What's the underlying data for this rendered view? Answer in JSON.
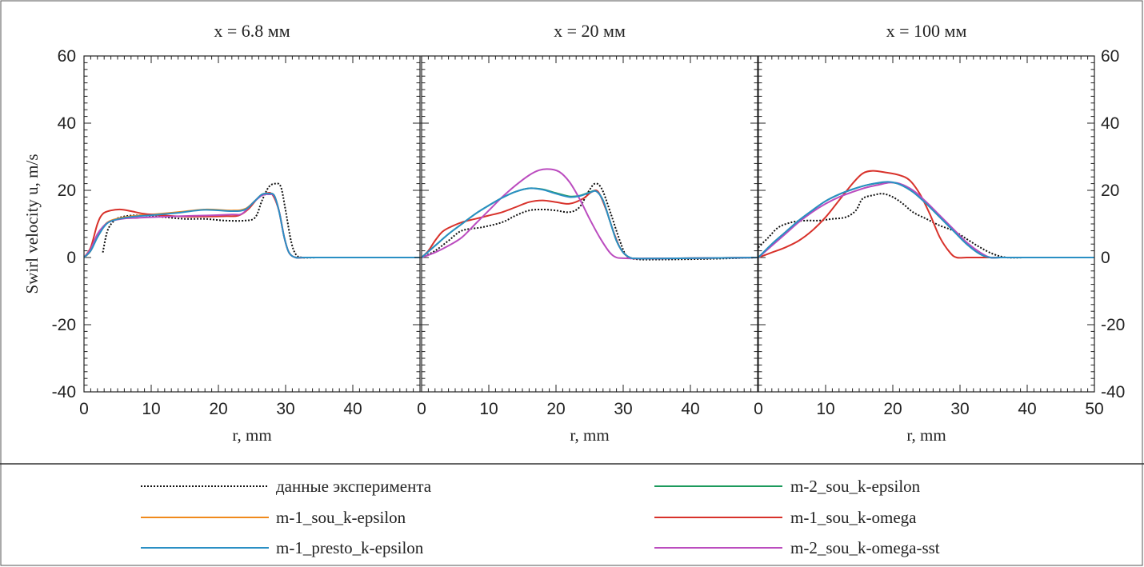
{
  "chart_data": {
    "type": "line",
    "ylabel": "Swirl velocity u, m/s",
    "ylim": [
      -40,
      60
    ],
    "yticks": [
      -40,
      -20,
      0,
      20,
      40,
      60
    ],
    "right_yticks": [
      -40,
      -20,
      0,
      20,
      40,
      60
    ],
    "legend_placement": "bottom",
    "series_styles": [
      {
        "name": "данные эксперимента",
        "color": "#111111",
        "dash": "2,2"
      },
      {
        "name": "m-1_sou_k-epsilon",
        "color": "#f08a1c",
        "dash": ""
      },
      {
        "name": "m-1_presto_k-epsilon",
        "color": "#2a8fc4",
        "dash": ""
      },
      {
        "name": "m-2_sou_k-epsilon",
        "color": "#1c9a5c",
        "dash": ""
      },
      {
        "name": "m-1_sou_k-omega",
        "color": "#d8322b",
        "dash": ""
      },
      {
        "name": "m-2_sou_k-omega-sst",
        "color": "#bb4cbf",
        "dash": ""
      }
    ],
    "panels": [
      {
        "title": "x = 6.8 мм",
        "xlabel": "r, mm",
        "xlim": [
          0,
          50
        ],
        "xticks": [
          0,
          10,
          20,
          30,
          40
        ],
        "series": [
          {
            "name": "данные эксперимента",
            "x": [
              2.8,
              3.5,
              4.5,
              5.5,
              7,
              9,
              12,
              15,
              18,
              21,
              24,
              25.5,
              26.5,
              27.5,
              28.5,
              29.3,
              30,
              30.8,
              31.5,
              32.5,
              35,
              40,
              45,
              50
            ],
            "y": [
              1.5,
              8,
              11,
              12,
              12.5,
              12.5,
              12,
              11.5,
              11.5,
              11,
              11,
              12,
              17,
              21,
              22,
              21,
              14,
              5,
              1,
              0,
              0,
              0,
              0,
              0
            ]
          },
          {
            "name": "m-1_sou_k-epsilon",
            "x": [
              0,
              1,
              2,
              3,
              4,
              6,
              8,
              10,
              14,
              18,
              22,
              24,
              25.5,
              26.5,
              27.5,
              28.3,
              29,
              29.8,
              30.5,
              31.5,
              33,
              40,
              50
            ],
            "y": [
              0,
              2,
              6.5,
              9.5,
              11,
              12,
              12.5,
              12.8,
              13.5,
              14.3,
              14,
              14.5,
              17,
              18.8,
              19,
              18.5,
              14,
              6,
              1.5,
              0,
              0,
              0,
              0
            ]
          },
          {
            "name": "m-1_presto_k-epsilon",
            "x": [
              0,
              1,
              2,
              3,
              4,
              6,
              8,
              10,
              14,
              18,
              22,
              24,
              25.5,
              26.5,
              27.5,
              28.3,
              29,
              29.8,
              30.5,
              31.5,
              33,
              40,
              50
            ],
            "y": [
              0,
              2,
              6,
              9.2,
              10.8,
              11.8,
              12.3,
              12.6,
              13.3,
              14.2,
              13.8,
              14.3,
              17,
              18.8,
              19,
              18.5,
              14,
              6,
              1.5,
              0,
              0,
              0,
              0
            ]
          },
          {
            "name": "m-1_sou_k-omega",
            "x": [
              0,
              1,
              2,
              2.8,
              4,
              5.5,
              7,
              9,
              12,
              15,
              18,
              21,
              23,
              24.5,
              25.8,
              27,
              28,
              29,
              29.8,
              30.5,
              31.5,
              33,
              40,
              50
            ],
            "y": [
              0,
              3,
              10,
              13,
              14,
              14.3,
              13.8,
              13,
              12.5,
              12.2,
              12.2,
              12.3,
              12.5,
              14.5,
              17.5,
              19,
              18.8,
              14,
              6,
              1.5,
              0,
              0,
              0,
              0
            ]
          },
          {
            "name": "m-2_sou_k-omega-sst",
            "x": [
              0,
              1,
              2,
              3,
              4,
              6,
              8,
              10,
              14,
              18,
              22,
              23.5,
              25,
              26.5,
              27.5,
              28.3,
              29,
              29.8,
              30.5,
              31.5,
              33,
              40,
              50
            ],
            "y": [
              0,
              2.5,
              7,
              9.5,
              10.8,
              11.6,
              11.8,
              12,
              12.3,
              12.5,
              12.8,
              13,
              16,
              18.5,
              18.8,
              18.3,
              14,
              6,
              1.5,
              0,
              0,
              0,
              0
            ]
          }
        ]
      },
      {
        "title": "x = 20 мм",
        "xlabel": "r, mm",
        "xlim": [
          0,
          50
        ],
        "xticks": [
          0,
          10,
          20,
          30,
          40
        ],
        "series": [
          {
            "name": "данные эксперимента",
            "x": [
              0,
              2,
              4,
              6,
              9,
              12,
              14,
              16,
              18,
              20,
              22,
              23.5,
              24.8,
              25.8,
              26.8,
              28,
              29.5,
              30.5,
              32,
              35,
              40,
              45,
              50
            ],
            "y": [
              0,
              2,
              5,
              8,
              9,
              10.5,
              12.5,
              14,
              14.3,
              14,
              13.5,
              15,
              19.5,
              22,
              20.5,
              14,
              5,
              0.5,
              -0.5,
              -0.6,
              -0.5,
              -0.3,
              0
            ]
          },
          {
            "name": "m-2_sou_k-epsilon",
            "x": [
              0,
              2,
              4,
              6,
              8,
              10,
              12,
              14,
              16,
              18,
              20,
              22,
              23.5,
              25,
              26,
              27,
              28,
              29,
              30,
              31,
              32,
              35,
              40,
              50
            ],
            "y": [
              0,
              3.5,
              7,
              10,
              13,
              15.5,
              17.8,
              19.6,
              20.6,
              20.3,
              19.2,
              18.2,
              18.4,
              19.4,
              19.8,
              17,
              11,
              5,
              1.5,
              0,
              -0.3,
              -0.3,
              -0.2,
              0
            ]
          },
          {
            "name": "m-1_presto_k-epsilon",
            "x": [
              0,
              2,
              4,
              6,
              8,
              10,
              12,
              14,
              16,
              18,
              20,
              22,
              23.5,
              25,
              26,
              27,
              28,
              29,
              30,
              31,
              32,
              35,
              40,
              50
            ],
            "y": [
              0,
              3.5,
              7,
              10,
              13,
              15.5,
              17.8,
              19.6,
              20.6,
              20.2,
              19,
              18,
              18.3,
              19.3,
              19.7,
              17,
              11,
              5,
              1.5,
              0,
              -0.3,
              -0.3,
              -0.2,
              0
            ]
          },
          {
            "name": "m-1_sou_k-omega",
            "x": [
              0,
              1,
              2,
              3,
              4,
              6,
              8,
              10,
              12,
              14,
              16,
              18,
              20,
              22,
              24,
              25.3,
              26.3,
              27.5,
              28.5,
              29.5,
              30.5,
              31.5,
              33,
              40,
              50
            ],
            "y": [
              0,
              2,
              5,
              7.5,
              8.8,
              10.5,
              11.5,
              12.5,
              13.5,
              15,
              16.5,
              17,
              16.5,
              16,
              17.5,
              19.5,
              19.5,
              14,
              8,
              3,
              0.5,
              -0.3,
              -0.3,
              -0.2,
              0
            ]
          },
          {
            "name": "m-2_sou_k-omega-sst",
            "x": [
              0,
              2,
              4,
              6,
              8,
              10,
              12,
              14,
              16,
              17.5,
              19,
              20.5,
              22,
              23.5,
              25,
              26.5,
              28,
              29,
              30,
              32,
              35,
              40,
              50
            ],
            "y": [
              0,
              1.5,
              3.5,
              6,
              10,
              14,
              18,
              21.5,
              24.5,
              26,
              26.3,
              25.5,
              22.5,
              17.5,
              11.5,
              6,
              1.5,
              0,
              -0.2,
              -0.3,
              -0.3,
              -0.2,
              0
            ]
          }
        ]
      },
      {
        "title": "x = 100 мм",
        "xlabel": "r, mm",
        "xlim": [
          0,
          50
        ],
        "xticks": [
          0,
          10,
          20,
          30,
          40,
          50
        ],
        "series": [
          {
            "name": "данные эксперимента",
            "x": [
              0,
              1.5,
              3,
              5,
              7,
              9,
              11,
              13,
              14.5,
              15.5,
              17,
              18.5,
              20,
              21.5,
              23,
              25,
              27,
              29,
              31,
              33,
              35,
              37,
              40,
              45,
              50
            ],
            "y": [
              3,
              6,
              9,
              10.5,
              11,
              11,
              11.5,
              12,
              14,
              17.5,
              18.5,
              19,
              18,
              16,
              13.5,
              11.5,
              9.5,
              8,
              5.5,
              3,
              1,
              0,
              0,
              0,
              0
            ]
          },
          {
            "name": "m-1_presto_k-epsilon",
            "x": [
              0,
              2,
              4,
              6,
              8,
              10,
              12,
              14,
              16,
              18,
              19.5,
              21,
              23,
              25,
              27,
              29,
              31,
              33,
              34.5,
              36,
              40,
              50
            ],
            "y": [
              0,
              4,
              7.5,
              11,
              14,
              16.8,
              18.8,
              20.3,
              21.5,
              22.3,
              22.5,
              21.8,
              19.5,
              16,
              12,
              8,
              4,
              1,
              0,
              0,
              0,
              0
            ]
          },
          {
            "name": "m-2_sou_k-epsilon",
            "x": [
              0,
              2,
              4,
              6,
              8,
              10,
              12,
              14,
              16,
              18,
              19.5,
              21,
              23,
              25,
              27,
              29,
              31,
              33,
              34.5,
              36,
              40,
              50
            ],
            "y": [
              0,
              4,
              7.5,
              11,
              14,
              16.8,
              18.8,
              20.3,
              21.5,
              22.2,
              22.4,
              21.8,
              19.5,
              16,
              12,
              8,
              4,
              1,
              0,
              0,
              0,
              0
            ]
          },
          {
            "name": "m-1_sou_k-omega",
            "x": [
              0,
              2,
              4,
              6,
              8,
              10,
              12,
              14,
              15.5,
              17,
              19,
              21,
              22.5,
              24,
              25.5,
              27,
              28.5,
              29.5,
              31,
              33,
              40,
              50
            ],
            "y": [
              0,
              1.5,
              3,
              5,
              8,
              12,
              17,
              22,
              25,
              25.8,
              25.3,
              24.5,
              23,
              19,
              13,
              6,
              1.5,
              0,
              0,
              0,
              0,
              0
            ]
          },
          {
            "name": "m-2_sou_k-omega-sst",
            "x": [
              0,
              2,
              4,
              6,
              8,
              10,
              12,
              14,
              16,
              18,
              19.5,
              21,
              23,
              25,
              27,
              29,
              31,
              33,
              34.5,
              36,
              40,
              50
            ],
            "y": [
              0,
              3.5,
              7,
              10.5,
              13.5,
              16,
              18,
              19.5,
              20.8,
              21.7,
              22.3,
              22,
              20,
              16.5,
              12.5,
              8.5,
              4.5,
              1.5,
              0,
              0,
              0,
              0
            ]
          }
        ]
      }
    ],
    "legend": [
      {
        "label": "данные эксперимента",
        "series": 0
      },
      {
        "label": "m-2_sou_k-epsilon",
        "series": 3
      },
      {
        "label": "m-1_sou_k-epsilon",
        "series": 1
      },
      {
        "label": "m-1_sou_k-omega",
        "series": 4
      },
      {
        "label": "m-1_presto_k-epsilon",
        "series": 2
      },
      {
        "label": "m-2_sou_k-omega-sst",
        "series": 5
      }
    ]
  }
}
